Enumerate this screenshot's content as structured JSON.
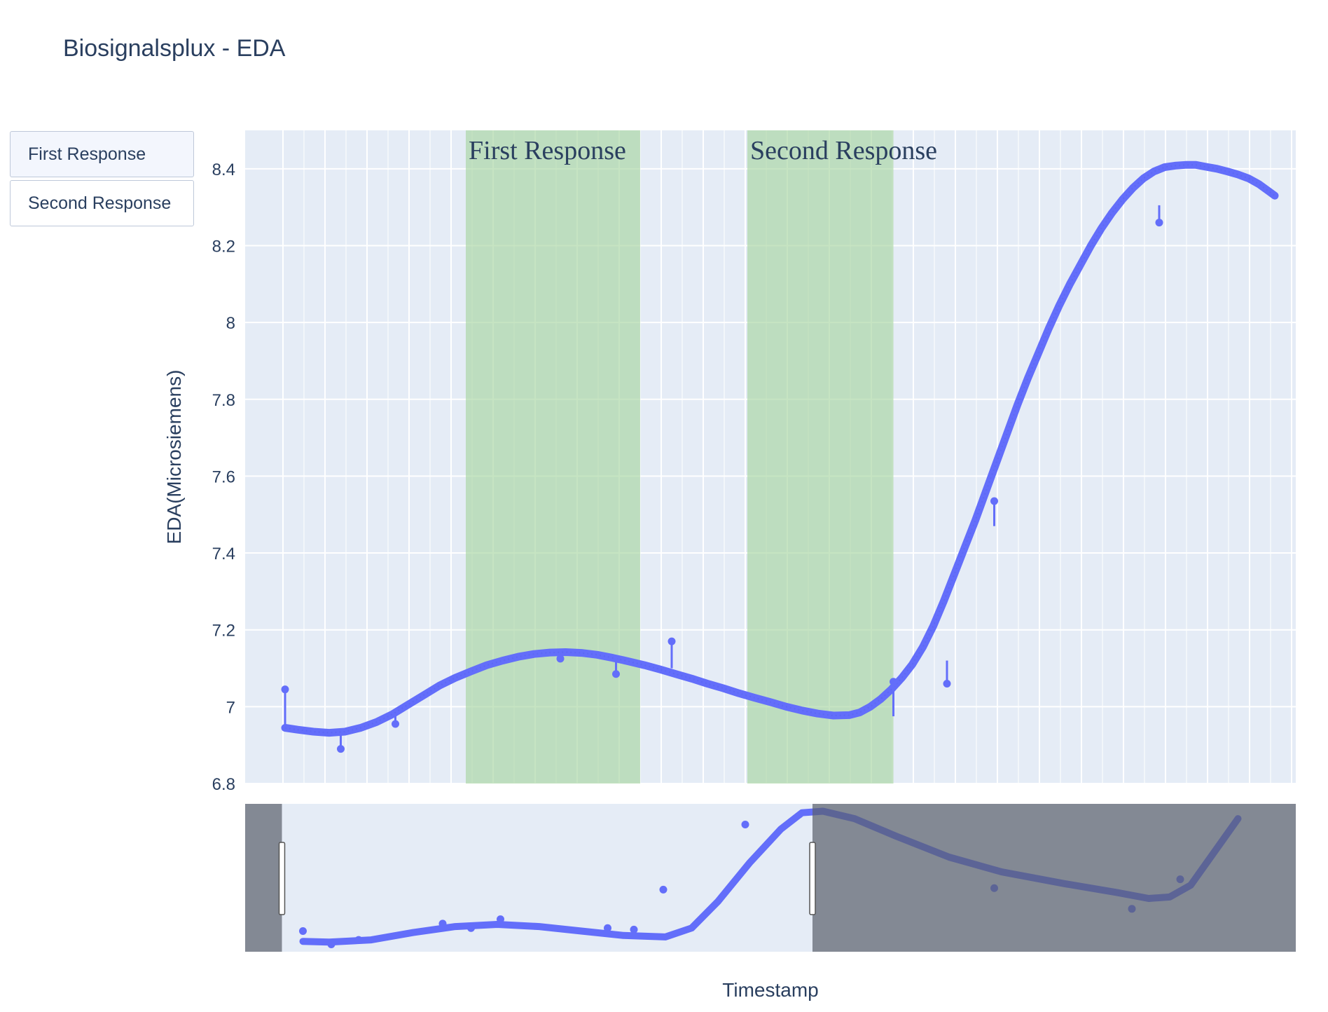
{
  "page": {
    "title": "Biosignalsplux - EDA"
  },
  "buttons": [
    {
      "label": "First Response",
      "active": true
    },
    {
      "label": "Second Response",
      "active": false
    }
  ],
  "colors": {
    "line": "#636efa",
    "plot_bg": "#e5ecf6",
    "grid": "#ffffff",
    "highlight": "#a8d5a2",
    "range_shade": "#5a5f6b",
    "range_line_dark": "#3b43a8"
  },
  "chart_data": {
    "type": "line",
    "title": "Biosignalsplux - EDA",
    "xlabel": "Timestamp",
    "ylabel": "EDA(Microsiemens)",
    "x_range": [
      0,
      100
    ],
    "ylim": [
      6.8,
      8.5
    ],
    "yticks": [
      6.8,
      7,
      7.2,
      7.4,
      7.6,
      7.8,
      8,
      8.2,
      8.4
    ],
    "ytick_labels": [
      "6.8",
      "7",
      "7.2",
      "7.4",
      "7.6",
      "7.8",
      "8",
      "8.2",
      "8.4"
    ],
    "grid": true,
    "series": [
      {
        "mode": "lines+markers",
        "points": [
          [
            3.8,
            6.945
          ],
          [
            5.0,
            6.94
          ],
          [
            6.5,
            6.935
          ],
          [
            8.0,
            6.932
          ],
          [
            9.5,
            6.935
          ],
          [
            11.0,
            6.945
          ],
          [
            12.5,
            6.96
          ],
          [
            14.0,
            6.98
          ],
          [
            15.5,
            7.005
          ],
          [
            17.0,
            7.03
          ],
          [
            18.5,
            7.055
          ],
          [
            20.0,
            7.075
          ],
          [
            21.5,
            7.092
          ],
          [
            23.0,
            7.108
          ],
          [
            24.5,
            7.12
          ],
          [
            26.0,
            7.13
          ],
          [
            27.5,
            7.137
          ],
          [
            29.0,
            7.141
          ],
          [
            30.5,
            7.142
          ],
          [
            32.0,
            7.14
          ],
          [
            33.5,
            7.135
          ],
          [
            35.0,
            7.127
          ],
          [
            36.5,
            7.118
          ],
          [
            38.0,
            7.108
          ],
          [
            39.5,
            7.097
          ],
          [
            41.0,
            7.085
          ],
          [
            42.5,
            7.073
          ],
          [
            44.0,
            7.06
          ],
          [
            45.5,
            7.048
          ],
          [
            47.0,
            7.035
          ],
          [
            48.5,
            7.023
          ],
          [
            50.0,
            7.012
          ],
          [
            51.5,
            7.0
          ],
          [
            53.0,
            6.99
          ],
          [
            54.5,
            6.982
          ],
          [
            56.0,
            6.977
          ],
          [
            57.5,
            6.978
          ],
          [
            58.5,
            6.985
          ],
          [
            59.5,
            7.0
          ],
          [
            60.5,
            7.02
          ],
          [
            61.5,
            7.045
          ],
          [
            62.5,
            7.075
          ],
          [
            63.5,
            7.11
          ],
          [
            64.5,
            7.155
          ],
          [
            65.5,
            7.21
          ],
          [
            66.5,
            7.275
          ],
          [
            67.5,
            7.345
          ],
          [
            68.5,
            7.415
          ],
          [
            69.5,
            7.485
          ],
          [
            70.5,
            7.56
          ],
          [
            71.5,
            7.635
          ],
          [
            72.5,
            7.71
          ],
          [
            73.5,
            7.785
          ],
          [
            74.5,
            7.855
          ],
          [
            75.5,
            7.92
          ],
          [
            76.5,
            7.985
          ],
          [
            77.5,
            8.045
          ],
          [
            78.5,
            8.1
          ],
          [
            79.5,
            8.15
          ],
          [
            80.5,
            8.2
          ],
          [
            81.5,
            8.245
          ],
          [
            82.5,
            8.285
          ],
          [
            83.5,
            8.32
          ],
          [
            84.5,
            8.35
          ],
          [
            85.5,
            8.375
          ],
          [
            86.5,
            8.393
          ],
          [
            87.5,
            8.404
          ],
          [
            88.5,
            8.408
          ],
          [
            89.5,
            8.41
          ],
          [
            90.5,
            8.41
          ],
          [
            91.5,
            8.405
          ],
          [
            92.5,
            8.4
          ],
          [
            93.5,
            8.393
          ],
          [
            94.5,
            8.385
          ],
          [
            95.5,
            8.375
          ],
          [
            96.5,
            8.36
          ],
          [
            97.5,
            8.34
          ],
          [
            98.0,
            8.33
          ]
        ]
      }
    ],
    "spikes": [
      [
        3.8,
        6.945,
        7.045
      ],
      [
        9.1,
        6.932,
        6.89
      ],
      [
        14.3,
        6.975,
        6.955
      ],
      [
        30.0,
        7.142,
        7.125
      ],
      [
        35.3,
        7.13,
        7.085
      ],
      [
        40.6,
        7.1,
        7.17
      ],
      [
        61.7,
        6.975,
        7.065
      ],
      [
        66.8,
        7.12,
        7.06
      ],
      [
        71.3,
        7.47,
        7.535
      ],
      [
        87.0,
        8.305,
        8.26
      ]
    ],
    "highlights": [
      {
        "x0": 21.0,
        "x1": 37.6,
        "label": "First Response"
      },
      {
        "x0": 47.8,
        "x1": 61.7,
        "label": "Second Response"
      }
    ],
    "rangeslider": {
      "visible": true,
      "window": [
        3.5,
        54.0
      ],
      "points": [
        [
          5.5,
          0.93
        ],
        [
          8.0,
          0.935
        ],
        [
          12.0,
          0.92
        ],
        [
          16.0,
          0.87
        ],
        [
          20.0,
          0.83
        ],
        [
          24.0,
          0.815
        ],
        [
          28.0,
          0.83
        ],
        [
          32.0,
          0.86
        ],
        [
          36.0,
          0.89
        ],
        [
          40.0,
          0.9
        ],
        [
          42.5,
          0.84
        ],
        [
          45.0,
          0.66
        ],
        [
          48.0,
          0.4
        ],
        [
          51.0,
          0.17
        ],
        [
          53.0,
          0.06
        ],
        [
          55.0,
          0.05
        ],
        [
          58.0,
          0.1
        ],
        [
          62.0,
          0.22
        ],
        [
          67.0,
          0.36
        ],
        [
          72.0,
          0.46
        ],
        [
          78.0,
          0.54
        ],
        [
          83.0,
          0.6
        ],
        [
          86.0,
          0.64
        ],
        [
          88.0,
          0.63
        ],
        [
          90.0,
          0.55
        ],
        [
          93.0,
          0.25
        ],
        [
          94.5,
          0.1
        ]
      ],
      "markers": [
        [
          5.5,
          0.86
        ],
        [
          8.2,
          0.95
        ],
        [
          10.8,
          0.92
        ],
        [
          18.8,
          0.81
        ],
        [
          21.5,
          0.84
        ],
        [
          24.3,
          0.78
        ],
        [
          34.5,
          0.84
        ],
        [
          37.0,
          0.85
        ],
        [
          39.8,
          0.58
        ],
        [
          47.6,
          0.14
        ],
        [
          71.3,
          0.57
        ],
        [
          84.4,
          0.71
        ],
        [
          89.0,
          0.51
        ]
      ]
    }
  }
}
